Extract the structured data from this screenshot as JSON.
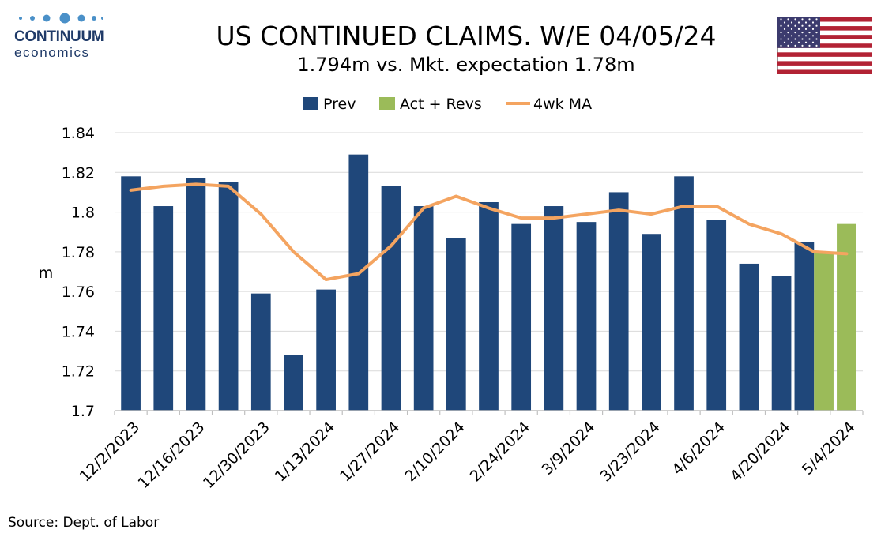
{
  "logo": {
    "name": "CONTINUUM",
    "sub": "economics",
    "color": "#1f3a68"
  },
  "title": "US CONTINUED CLAIMS. W/E 04/05/24",
  "subtitle": "1.794m vs. Mkt. expectation 1.78m",
  "source": "Source: Dept. of Labor",
  "flag_icon": "us-flag-icon",
  "chart_data": {
    "type": "bar",
    "ylabel": "m",
    "ylim": [
      1.7,
      1.84
    ],
    "yticks": [
      "1.84",
      "1.82",
      "1.8",
      "1.78",
      "1.76",
      "1.74",
      "1.72",
      "1.7"
    ],
    "ytick_values": [
      1.84,
      1.82,
      1.8,
      1.78,
      1.76,
      1.74,
      1.72,
      1.7
    ],
    "grid": true,
    "legend_position": "top",
    "legend": [
      "Prev",
      "Act + Revs",
      "4wk MA"
    ],
    "categories": [
      "12/2/2023",
      "12/9/2023",
      "12/16/2023",
      "12/23/2023",
      "12/30/2023",
      "1/6/2024",
      "1/13/2024",
      "1/20/2024",
      "1/27/2024",
      "2/3/2024",
      "2/10/2024",
      "2/17/2024",
      "2/24/2024",
      "3/2/2024",
      "3/9/2024",
      "3/16/2024",
      "3/23/2024",
      "3/30/2024",
      "4/6/2024",
      "4/13/2024",
      "4/20/2024",
      "4/27/2024",
      "5/4/2024"
    ],
    "xtick_labels": [
      "12/2/2023",
      "12/16/2023",
      "12/30/2023",
      "1/13/2024",
      "1/27/2024",
      "2/10/2024",
      "2/24/2024",
      "3/9/2024",
      "3/23/2024",
      "4/6/2024",
      "4/20/2024",
      "5/4/2024"
    ],
    "series": [
      {
        "name": "Prev",
        "type": "bar",
        "color": "#1f477a",
        "values": [
          1.818,
          1.803,
          1.817,
          1.815,
          1.759,
          1.728,
          1.761,
          1.829,
          1.813,
          1.803,
          1.787,
          1.805,
          1.794,
          1.803,
          1.795,
          1.81,
          1.789,
          1.818,
          1.796,
          1.774,
          1.768,
          1.785,
          null
        ]
      },
      {
        "name": "Act + Revs",
        "type": "bar",
        "color": "#9bbb59",
        "values": [
          null,
          null,
          null,
          null,
          null,
          null,
          null,
          null,
          null,
          null,
          null,
          null,
          null,
          null,
          null,
          null,
          null,
          null,
          null,
          null,
          null,
          1.78,
          1.794
        ]
      },
      {
        "name": "4wk MA",
        "type": "line",
        "color": "#f4a460",
        "values": [
          1.811,
          1.813,
          1.814,
          1.813,
          1.799,
          1.78,
          1.766,
          1.769,
          1.783,
          1.802,
          1.808,
          1.802,
          1.797,
          1.797,
          1.799,
          1.801,
          1.799,
          1.803,
          1.803,
          1.794,
          1.789,
          1.78,
          1.779
        ]
      }
    ]
  }
}
